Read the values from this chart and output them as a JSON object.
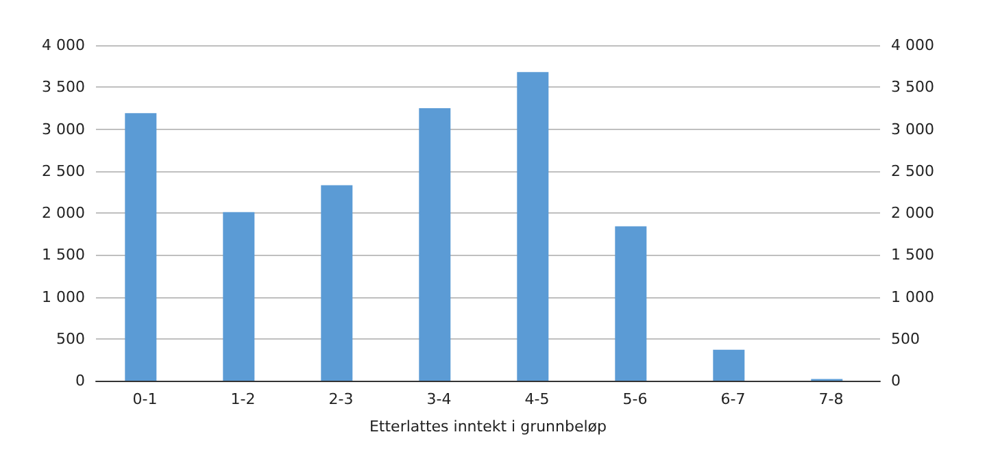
{
  "chart_data": {
    "type": "bar",
    "xlabel": "Etterlattes inntekt i grunnbeløp",
    "categories": [
      "0-1",
      "1-2",
      "2-3",
      "3-4",
      "4-5",
      "5-6",
      "6-7",
      "7-8"
    ],
    "values": [
      3190,
      2010,
      2330,
      3250,
      3680,
      1840,
      370,
      20
    ],
    "color": "#5b9bd5",
    "ylim": [
      0,
      4000
    ],
    "yticks": [
      0,
      500,
      {
        "value": 1000,
        "label": "1 000"
      },
      {
        "value": 1500,
        "label": "1 500"
      },
      {
        "value": 2000,
        "label": "2 000"
      },
      {
        "value": 2500,
        "label": "2 500"
      },
      {
        "value": 3000,
        "label": "3 000"
      },
      {
        "value": 3500,
        "label": "3 500"
      },
      {
        "value": 4000,
        "label": "4 000"
      }
    ],
    "y2lim": [
      0,
      4000
    ],
    "y2ticks": [
      0,
      500,
      {
        "value": 1000,
        "label": "1 000"
      },
      {
        "value": 1500,
        "label": "1 500"
      },
      {
        "value": 2000,
        "label": "2 000"
      },
      {
        "value": 2500,
        "label": "2 500"
      },
      {
        "value": 3000,
        "label": "3 000"
      },
      {
        "value": 3500,
        "label": "3 500"
      },
      {
        "value": 4000,
        "label": "4 000"
      }
    ],
    "grid": "y"
  }
}
